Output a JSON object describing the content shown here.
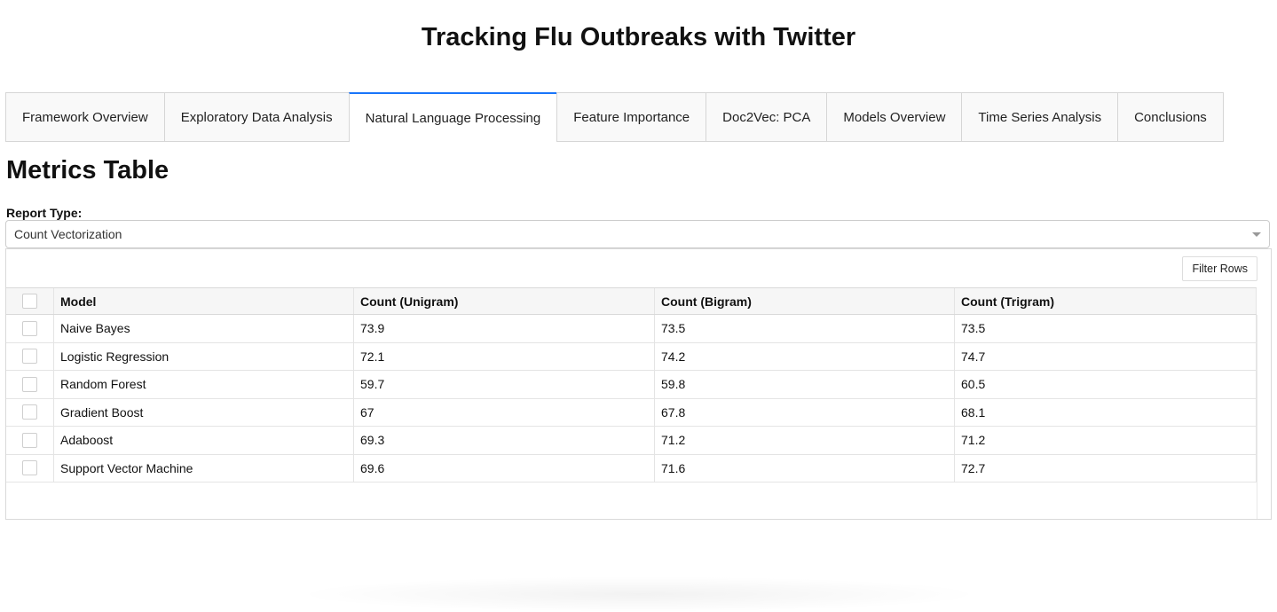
{
  "header": {
    "title": "Tracking Flu Outbreaks with Twitter"
  },
  "tabs": [
    {
      "label": "Framework Overview",
      "active": false
    },
    {
      "label": "Exploratory Data Analysis",
      "active": false
    },
    {
      "label": "Natural Language Processing",
      "active": true
    },
    {
      "label": "Feature Importance",
      "active": false
    },
    {
      "label": "Doc2Vec: PCA",
      "active": false
    },
    {
      "label": "Models Overview",
      "active": false
    },
    {
      "label": "Time Series Analysis",
      "active": false
    },
    {
      "label": "Conclusions",
      "active": false
    }
  ],
  "main": {
    "section_title": "Metrics Table",
    "report_type_label": "Report Type:",
    "report_type_value": "Count Vectorization",
    "filter_button": "Filter Rows"
  },
  "table": {
    "columns": [
      "Model",
      "Count (Unigram)",
      "Count (Bigram)",
      "Count (Trigram)"
    ],
    "rows": [
      [
        "Naive Bayes",
        "73.9",
        "73.5",
        "73.5"
      ],
      [
        "Logistic Regression",
        "72.1",
        "74.2",
        "74.7"
      ],
      [
        "Random Forest",
        "59.7",
        "59.8",
        "60.5"
      ],
      [
        "Gradient Boost",
        "67",
        "67.8",
        "68.1"
      ],
      [
        "Adaboost",
        "69.3",
        "71.2",
        "71.2"
      ],
      [
        "Support Vector Machine",
        "69.6",
        "71.6",
        "72.7"
      ]
    ]
  },
  "colors": {
    "active_tab_accent": "#1975fa",
    "header_background": "#f6f6f6"
  }
}
